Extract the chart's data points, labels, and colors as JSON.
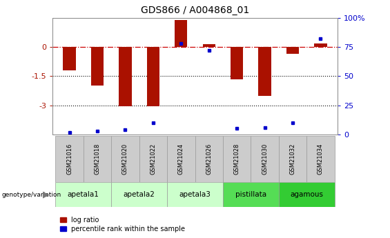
{
  "title": "GDS866 / A004868_01",
  "samples": [
    "GSM21016",
    "GSM21018",
    "GSM21020",
    "GSM21022",
    "GSM21024",
    "GSM21026",
    "GSM21028",
    "GSM21030",
    "GSM21032",
    "GSM21034"
  ],
  "log_ratio": [
    -1.2,
    -2.0,
    -3.05,
    -3.05,
    1.4,
    0.15,
    -1.65,
    -2.5,
    -0.35,
    0.2
  ],
  "percentile_rank": [
    2,
    3,
    4,
    10,
    78,
    72,
    5,
    6,
    10,
    82
  ],
  "ylim": [
    -4.5,
    1.5
  ],
  "yticks": [
    0,
    -1.5,
    -3
  ],
  "ytick_labels": [
    "0",
    "-1.5",
    "-3"
  ],
  "right_yticks": [
    0,
    25,
    50,
    75,
    100
  ],
  "right_ytick_labels": [
    "0",
    "25",
    "50",
    "75",
    "100%"
  ],
  "hline_color": "#cc0000",
  "dotted_lines": [
    -1.5,
    -3.0
  ],
  "bar_color_red": "#aa1100",
  "bar_color_blue": "#0000cc",
  "groups": [
    {
      "name": "apetala1",
      "samples": [
        0,
        1
      ],
      "color": "#ccffcc"
    },
    {
      "name": "apetala2",
      "samples": [
        2,
        3
      ],
      "color": "#ccffcc"
    },
    {
      "name": "apetala3",
      "samples": [
        4,
        5
      ],
      "color": "#ccffcc"
    },
    {
      "name": "pistillata",
      "samples": [
        6,
        7
      ],
      "color": "#55dd55"
    },
    {
      "name": "agamous",
      "samples": [
        8,
        9
      ],
      "color": "#33cc33"
    }
  ],
  "group_label_prefix": "genotype/variation",
  "legend_red_label": "log ratio",
  "legend_blue_label": "percentile rank within the sample",
  "sample_bg_color": "#cccccc",
  "sample_border_color": "#999999",
  "plot_bg_color": "#ffffff",
  "figure_bg_color": "#ffffff"
}
